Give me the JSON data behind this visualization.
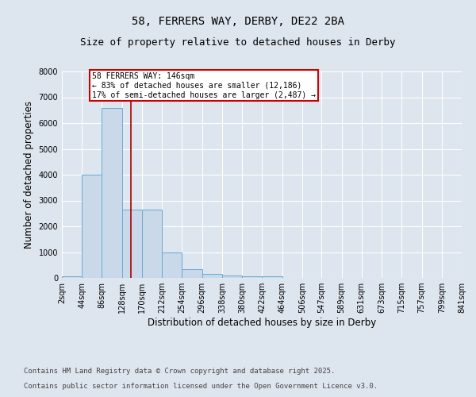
{
  "title": "58, FERRERS WAY, DERBY, DE22 2BA",
  "subtitle": "Size of property relative to detached houses in Derby",
  "xlabel": "Distribution of detached houses by size in Derby",
  "ylabel": "Number of detached properties",
  "bin_edges": [
    2,
    44,
    86,
    128,
    170,
    212,
    254,
    296,
    338,
    380,
    422,
    464,
    506,
    547,
    589,
    631,
    673,
    715,
    757,
    799,
    841
  ],
  "bar_heights": [
    50,
    4000,
    6600,
    2650,
    2650,
    1000,
    350,
    150,
    80,
    50,
    50,
    0,
    0,
    0,
    0,
    0,
    0,
    0,
    0,
    0
  ],
  "bar_color": "#c9d9ea",
  "bar_edge_color": "#6aaad4",
  "property_size": 146,
  "red_line_color": "#aa0000",
  "annotation_title": "58 FERRERS WAY: 146sqm",
  "annotation_line1": "← 83% of detached houses are smaller (12,186)",
  "annotation_line2": "17% of semi-detached houses are larger (2,487) →",
  "annotation_box_color": "#cc0000",
  "ylim": [
    0,
    8000
  ],
  "yticks": [
    0,
    1000,
    2000,
    3000,
    4000,
    5000,
    6000,
    7000,
    8000
  ],
  "background_color": "#dde5ef",
  "grid_color": "#ffffff",
  "footnote1": "Contains HM Land Registry data © Crown copyright and database right 2025.",
  "footnote2": "Contains public sector information licensed under the Open Government Licence v3.0.",
  "title_fontsize": 10,
  "subtitle_fontsize": 9,
  "axis_label_fontsize": 8.5,
  "tick_fontsize": 7,
  "annotation_fontsize": 7,
  "footnote_fontsize": 6.5
}
